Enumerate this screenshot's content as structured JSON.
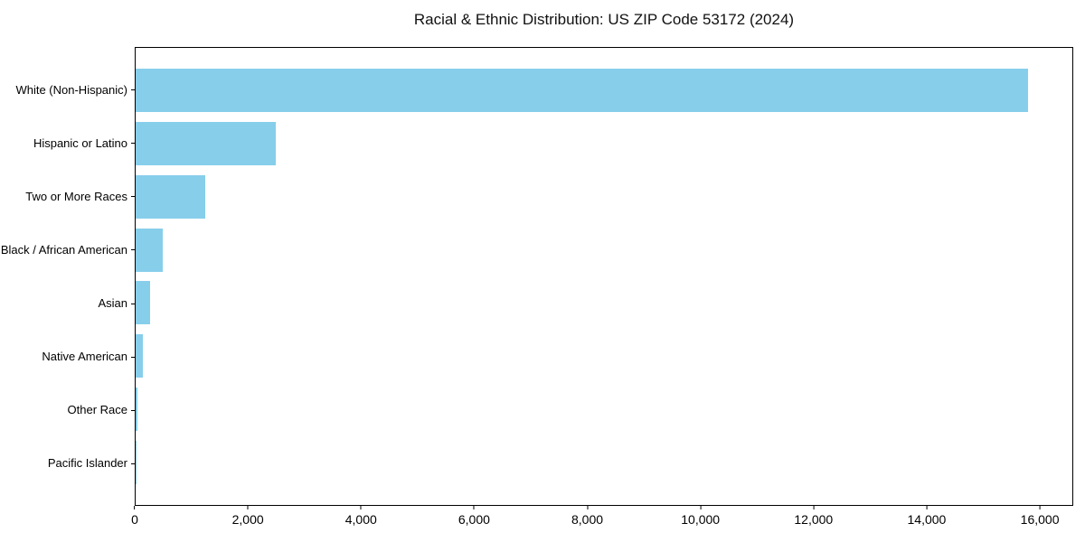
{
  "chart_data": {
    "type": "bar",
    "orientation": "horizontal",
    "title": "Racial & Ethnic Distribution: US ZIP Code 53172 (2024)",
    "categories": [
      "White (Non-Hispanic)",
      "Hispanic or Latino",
      "Two or More Races",
      "Black / African American",
      "Asian",
      "Native American",
      "Other Race",
      "Pacific Islander"
    ],
    "values": [
      15800,
      2480,
      1240,
      480,
      250,
      130,
      25,
      5
    ],
    "xlabel": "",
    "ylabel": "",
    "xlim": [
      0,
      16590
    ],
    "x_ticks": [
      0,
      2000,
      4000,
      6000,
      8000,
      10000,
      12000,
      14000,
      16000
    ],
    "x_tick_labels": [
      "0",
      "2,000",
      "4,000",
      "6,000",
      "8,000",
      "10,000",
      "12,000",
      "14,000",
      "16,000"
    ],
    "bar_color": "#87CEEB",
    "spine_color": "#000000",
    "grid": false,
    "legend": false
  }
}
